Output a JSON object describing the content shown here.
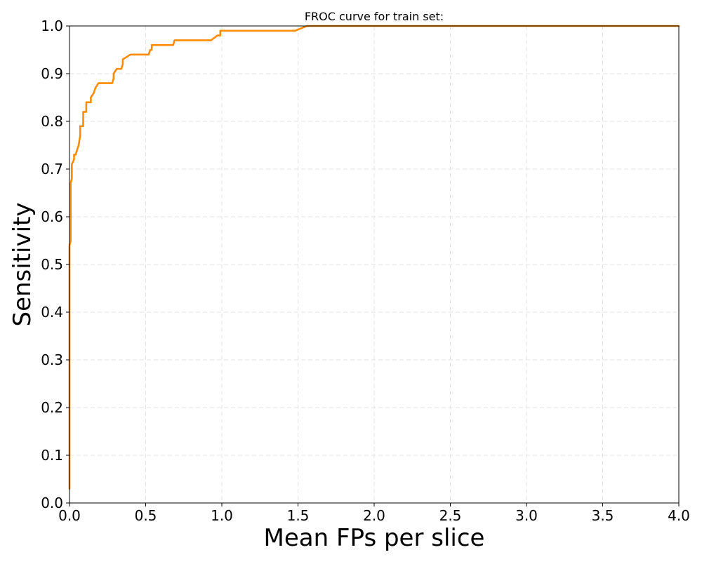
{
  "chart_data": {
    "type": "line",
    "title": "FROC curve for train set:",
    "xlabel": "Mean FPs per slice",
    "ylabel": "Sensitivity",
    "xlim": [
      0.0,
      4.0
    ],
    "ylim": [
      0.0,
      1.0
    ],
    "x_ticks": [
      "0.0",
      "0.5",
      "1.0",
      "1.5",
      "2.0",
      "2.5",
      "3.0",
      "3.5",
      "4.0"
    ],
    "y_ticks": [
      "0.0",
      "0.1",
      "0.2",
      "0.3",
      "0.4",
      "0.5",
      "0.6",
      "0.7",
      "0.8",
      "0.9",
      "1.0"
    ],
    "grid": true,
    "legend": false,
    "series": [
      {
        "color": "#ff8c00",
        "x": [
          0.0,
          0.0,
          0.008,
          0.008,
          0.015,
          0.015,
          0.03,
          0.03,
          0.04,
          0.05,
          0.06,
          0.065,
          0.07,
          0.07,
          0.09,
          0.09,
          0.11,
          0.11,
          0.14,
          0.14,
          0.16,
          0.17,
          0.17,
          0.19,
          0.28,
          0.29,
          0.29,
          0.31,
          0.34,
          0.35,
          0.35,
          0.4,
          0.52,
          0.53,
          0.54,
          0.54,
          0.68,
          0.69,
          0.69,
          0.93,
          0.97,
          0.99,
          0.99,
          1.01,
          1.48,
          1.56,
          1.6,
          4.0
        ],
        "y": [
          0.03,
          0.54,
          0.55,
          0.67,
          0.68,
          0.71,
          0.72,
          0.73,
          0.73,
          0.74,
          0.75,
          0.76,
          0.77,
          0.79,
          0.79,
          0.82,
          0.82,
          0.84,
          0.84,
          0.85,
          0.86,
          0.87,
          0.87,
          0.88,
          0.88,
          0.89,
          0.9,
          0.91,
          0.91,
          0.92,
          0.93,
          0.94,
          0.94,
          0.95,
          0.95,
          0.96,
          0.96,
          0.97,
          0.97,
          0.97,
          0.98,
          0.98,
          0.99,
          0.99,
          0.99,
          1.0,
          1.0,
          1.0
        ]
      }
    ]
  }
}
